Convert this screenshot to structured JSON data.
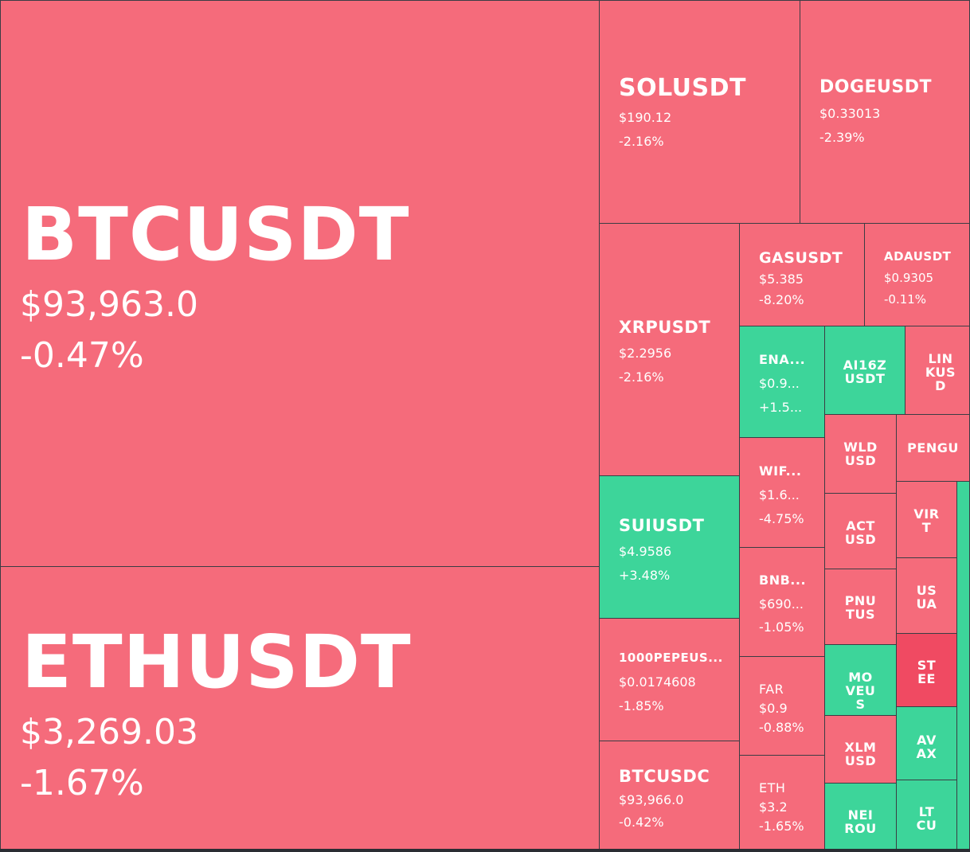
{
  "colors": {
    "down": "#f56b7b",
    "up": "#3dd59a",
    "strong_down": "#f04a62",
    "border": "#3a3d44"
  },
  "tiles": {
    "btc": {
      "symbol": "BTCUSDT",
      "price": "$93,963.0",
      "change": "-0.47%"
    },
    "eth": {
      "symbol": "ETHUSDT",
      "price": "$3,269.03",
      "change": "-1.67%"
    },
    "sol": {
      "symbol": "SOLUSDT",
      "price": "$190.12",
      "change": "-2.16%"
    },
    "doge": {
      "symbol": "DOGEUSDT",
      "price": "$0.33013",
      "change": "-2.39%"
    },
    "xrp": {
      "symbol": "XRPUSDT",
      "price": "$2.2956",
      "change": "-2.16%"
    },
    "gas": {
      "symbol": "GASUSDT",
      "price": "$5.385",
      "change": "-8.20%"
    },
    "ada": {
      "symbol": "ADAUSDT",
      "price": "$0.9305",
      "change": "-0.11%"
    },
    "ena": {
      "symbol": "ENA...",
      "price": "$0.9...",
      "change": "+1.5..."
    },
    "ai16z": {
      "symbol": "AI16Z USDT"
    },
    "link": {
      "symbol": "LINKUSD"
    },
    "wld": {
      "symbol": "WLD USD"
    },
    "pen": {
      "symbol": "PENGU"
    },
    "wif": {
      "symbol": "WIF...",
      "price": "$1.6...",
      "change": "-4.75%"
    },
    "act": {
      "symbol": "ACT USD"
    },
    "virt": {
      "symbol": "VIRT"
    },
    "sui": {
      "symbol": "SUIUSDT",
      "price": "$4.9586",
      "change": "+3.48%"
    },
    "bnb": {
      "symbol": "BNB...",
      "price": "$690...",
      "change": "-1.05%"
    },
    "pnut": {
      "symbol": "PNUTUS"
    },
    "usua": {
      "symbol": "USUA"
    },
    "pepe": {
      "symbol": "1000PEPEUS...",
      "price": "$0.0174608",
      "change": "-1.85%"
    },
    "fartcoin": {
      "symbol": "FAR",
      "price": "$0.9",
      "change": "-0.88%"
    },
    "move": {
      "symbol": "MOVEUS"
    },
    "stee": {
      "symbol": "STEE"
    },
    "xlm": {
      "symbol": "XLM USD"
    },
    "avax": {
      "symbol": "AVAX"
    },
    "btcusdc": {
      "symbol": "BTCUSDC",
      "price": "$93,966.0",
      "change": "-0.42%"
    },
    "ethusdc": {
      "symbol": "ETH",
      "price": "$3.2",
      "change": "-1.65%"
    },
    "neiro": {
      "symbol": "NEIROU"
    },
    "ltc": {
      "symbol": "LTCU"
    }
  }
}
